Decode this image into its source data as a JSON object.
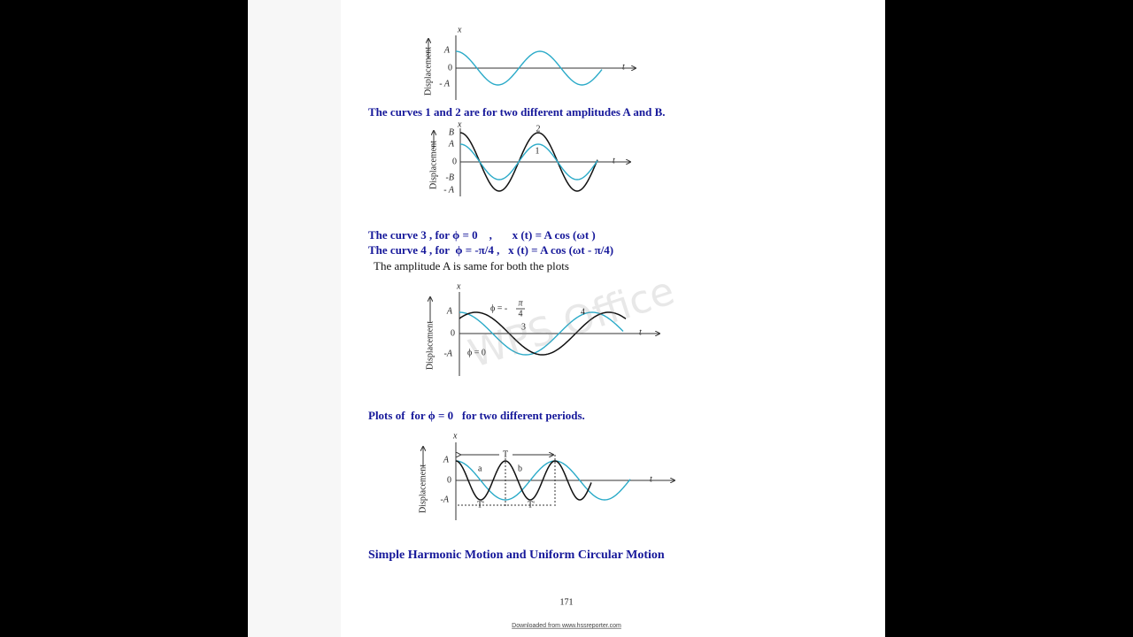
{
  "figures": [
    {
      "x_label": "x",
      "t_label": "t",
      "y_label": "Displacement",
      "ticks": [
        "A",
        "0",
        "- A"
      ],
      "annotations": []
    },
    {
      "x_label": "x",
      "t_label": "t",
      "y_label": "Displacement",
      "ticks": [
        "B",
        "A",
        "0",
        "-B",
        "- A"
      ],
      "annotations": [
        "2",
        "1"
      ]
    },
    {
      "x_label": "x",
      "t_label": "t",
      "y_label": "Displacement",
      "ticks": [
        "A",
        "0",
        "-A"
      ],
      "annotations": [
        "ϕ = -",
        "π",
        "4",
        "4",
        "3",
        "ϕ = 0"
      ]
    },
    {
      "x_label": "x",
      "t_label": "t",
      "y_label": "Displacement",
      "ticks": [
        "A",
        "0",
        "-A"
      ],
      "annotations": [
        "T",
        "a",
        "b",
        "T'",
        "T'"
      ]
    }
  ],
  "captions": [
    "The curves 1 and 2 are for two different amplitudes A and B.",
    "The curve 3 , for ϕ = 0    ,       x (t) = A cos (ωt )",
    "The curve 4 , for  ϕ = -π/4 ,   x (t) = A cos (ωt - π/4)",
    "Plots of  for ϕ = 0   for two different periods."
  ],
  "note": "The amplitude A is same for both the plots",
  "heading": "Simple Harmonic Motion and Uniform Circular Motion",
  "watermark": "WPS Office",
  "page_number": "171",
  "footer": "Downloaded from www.hssreporter.com"
}
